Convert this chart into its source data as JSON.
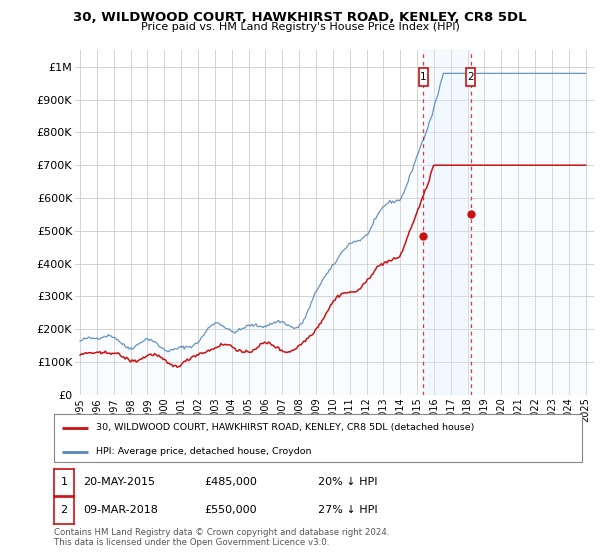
{
  "title": "30, WILDWOOD COURT, HAWKHIRST ROAD, KENLEY, CR8 5DL",
  "subtitle": "Price paid vs. HM Land Registry's House Price Index (HPI)",
  "hpi_color": "#5588bb",
  "hpi_fill_color": "#ddeeff",
  "price_color": "#cc1111",
  "background_color": "#ffffff",
  "grid_color": "#cccccc",
  "ylim": [
    0,
    1050000
  ],
  "yticks": [
    0,
    100000,
    200000,
    300000,
    400000,
    500000,
    600000,
    700000,
    800000,
    900000,
    1000000
  ],
  "ytick_labels": [
    "£0",
    "£100K",
    "£200K",
    "£300K",
    "£400K",
    "£500K",
    "£600K",
    "£700K",
    "£800K",
    "£900K",
    "£1M"
  ],
  "legend_house_label": "30, WILDWOOD COURT, HAWKHIRST ROAD, KENLEY, CR8 5DL (detached house)",
  "legend_hpi_label": "HPI: Average price, detached house, Croydon",
  "transaction1_date": "20-MAY-2015",
  "transaction1_price": "£485,000",
  "transaction1_hpi": "20% ↓ HPI",
  "transaction2_date": "09-MAR-2018",
  "transaction2_price": "£550,000",
  "transaction2_hpi": "27% ↓ HPI",
  "footer": "Contains HM Land Registry data © Crown copyright and database right 2024.\nThis data is licensed under the Open Government Licence v3.0.",
  "transaction1_year": 2015.38,
  "transaction2_year": 2018.18,
  "transaction1_value": 485000,
  "transaction2_value": 550000,
  "xmin": 1995,
  "xmax": 2025
}
